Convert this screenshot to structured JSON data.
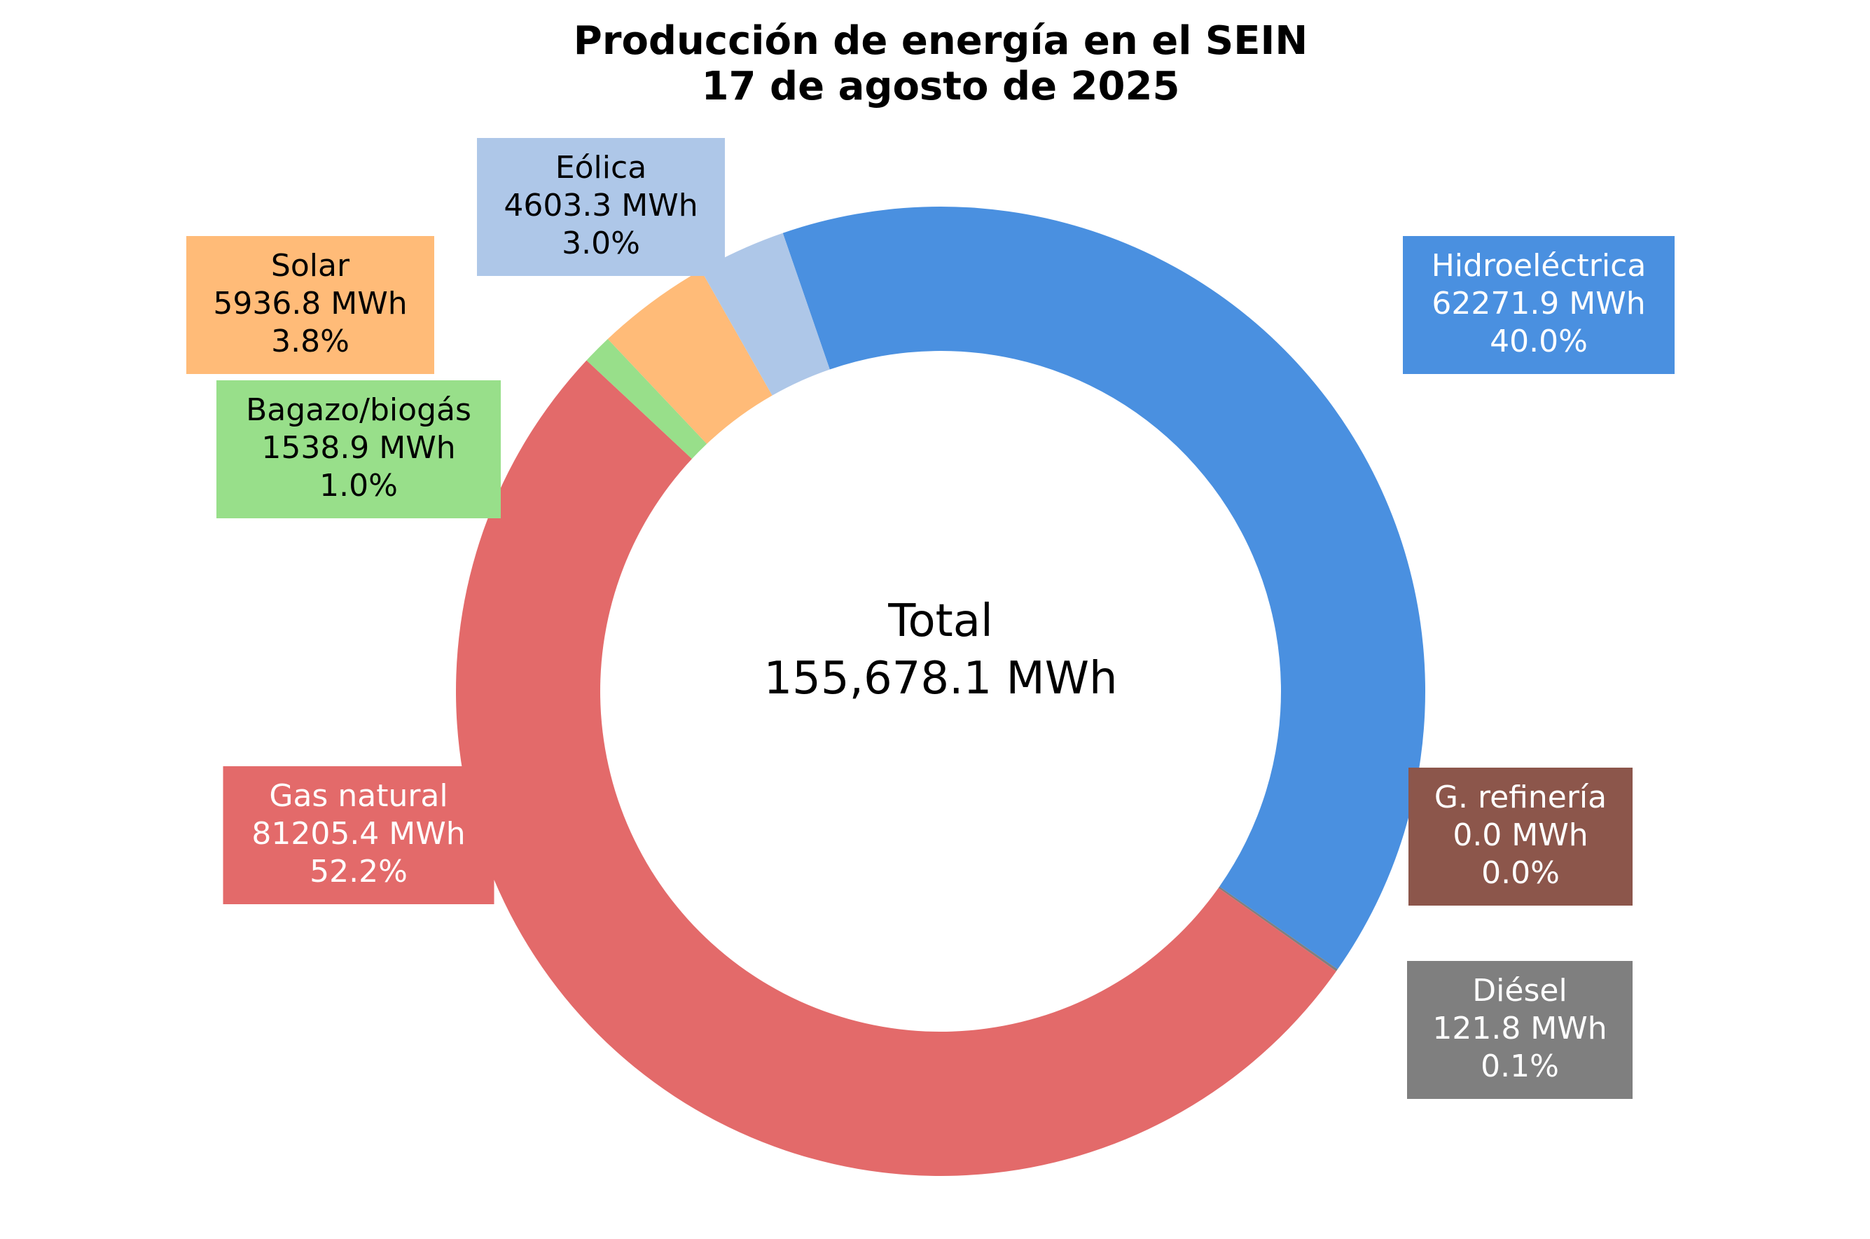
{
  "chart_data": {
    "type": "pie",
    "variant": "donut",
    "title": "Producción de energía en el SEIN",
    "subtitle": "17 de agosto de 2025",
    "center_label": "Total",
    "center_value": "155,678.1 MWh",
    "unit": "MWh",
    "slices": [
      {
        "name": "Hidroeléctrica",
        "value": 62271.9,
        "value_label": "62271.9 MWh",
        "percent_label": "40.0%",
        "color": "#4a90e0",
        "text_color": "#ffffff"
      },
      {
        "name": "G. refinería",
        "value": 0.0,
        "value_label": "0.0 MWh",
        "percent_label": "0.0%",
        "color": "#8c564b",
        "text_color": "#ffffff"
      },
      {
        "name": "Diésel",
        "value": 121.8,
        "value_label": "121.8 MWh",
        "percent_label": "0.1%",
        "color": "#7f7f7f",
        "text_color": "#ffffff"
      },
      {
        "name": "Gas natural",
        "value": 81205.4,
        "value_label": "81205.4 MWh",
        "percent_label": "52.2%",
        "color": "#e36a6a",
        "text_color": "#ffffff"
      },
      {
        "name": "Bagazo/biogás",
        "value": 1538.9,
        "value_label": "1538.9 MWh",
        "percent_label": "1.0%",
        "color": "#98df8a",
        "text_color": "#000000"
      },
      {
        "name": "Solar",
        "value": 5936.8,
        "value_label": "5936.8 MWh",
        "percent_label": "3.8%",
        "color": "#ffbb78",
        "text_color": "#000000"
      },
      {
        "name": "Eólica",
        "value": 4603.3,
        "value_label": "4603.3 MWh",
        "percent_label": "3.0%",
        "color": "#aec7e8",
        "text_color": "#000000"
      }
    ]
  }
}
